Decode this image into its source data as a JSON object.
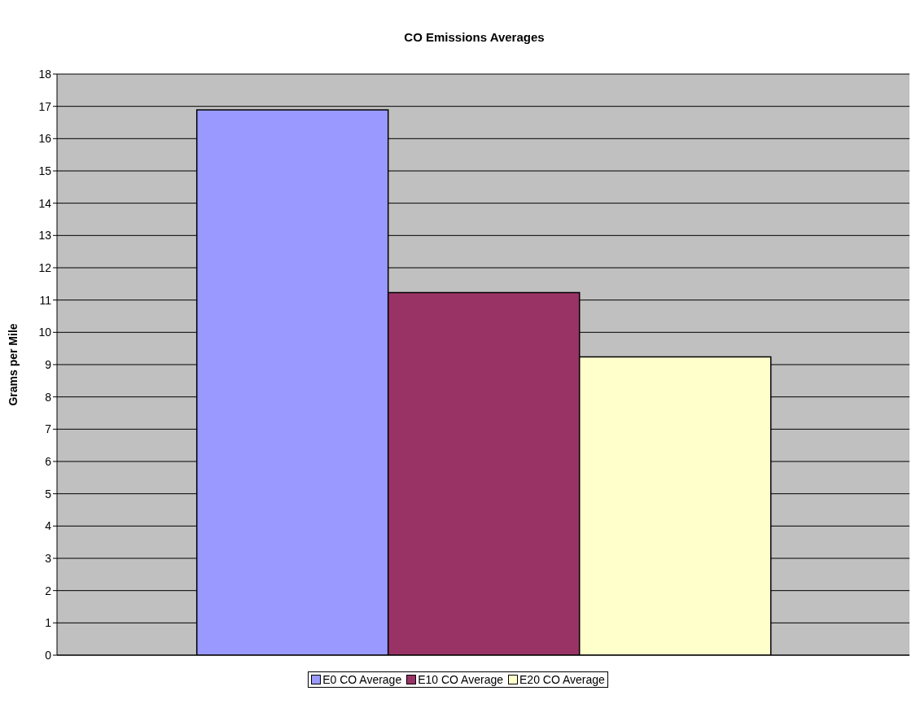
{
  "chart_data": {
    "type": "bar",
    "title": "CO Emissions Averages",
    "ylabel": "Grams per Mile",
    "categories": [
      null
    ],
    "series": [
      {
        "name": "E0 CO Average",
        "color": "#9999ff",
        "values": [
          16.89
        ]
      },
      {
        "name": "E10 CO Average",
        "color": "#993366",
        "values": [
          11.23
        ]
      },
      {
        "name": "E20 CO Average",
        "color": "#ffffcc",
        "values": [
          9.24
        ]
      }
    ],
    "ylim": [
      0,
      18
    ],
    "yticks": [
      0,
      1,
      2,
      3,
      4,
      5,
      6,
      7,
      8,
      9,
      10,
      11,
      12,
      13,
      14,
      15,
      16,
      17,
      18
    ],
    "grid": "y",
    "legend": "bottom"
  }
}
